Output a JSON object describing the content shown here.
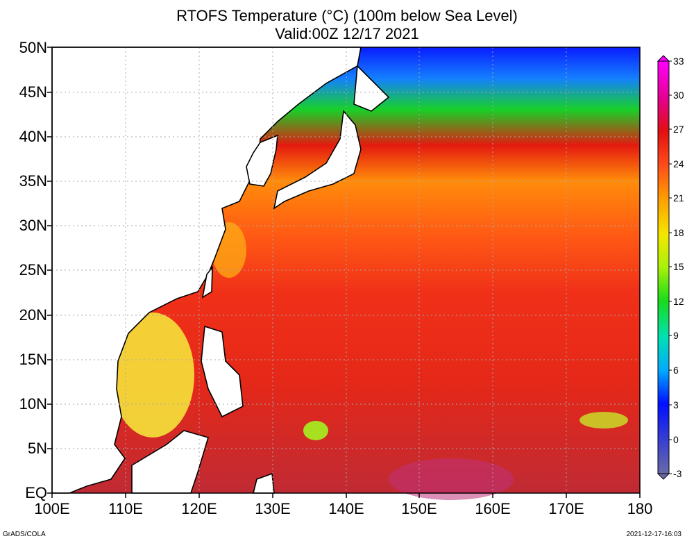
{
  "title": {
    "line1": "RTOFS Temperature (°C) (100m below Sea Level)",
    "line2": "Valid:00Z 12/17 2021"
  },
  "axes": {
    "lat_labels": [
      "50N",
      "45N",
      "40N",
      "35N",
      "30N",
      "25N",
      "20N",
      "15N",
      "10N",
      "5N",
      "EQ"
    ],
    "lon_labels": [
      "100E",
      "110E",
      "120E",
      "130E",
      "140E",
      "150E",
      "160E",
      "170E",
      "180"
    ]
  },
  "colorbar": {
    "labels": [
      "33",
      "30",
      "27",
      "24",
      "21",
      "18",
      "15",
      "12",
      "9",
      "6",
      "3",
      "0",
      "-3"
    ],
    "colors": [
      "#ff00ff",
      "#e40090",
      "#e01010",
      "#ff4a1a",
      "#ff9a00",
      "#f5e600",
      "#aaf00a",
      "#1adc1a",
      "#00e0b4",
      "#00aaff",
      "#0010ff",
      "#6a6aa8"
    ]
  },
  "footer": {
    "left": "GrADS/COLA",
    "right": "2021-12-17-16:03"
  }
}
